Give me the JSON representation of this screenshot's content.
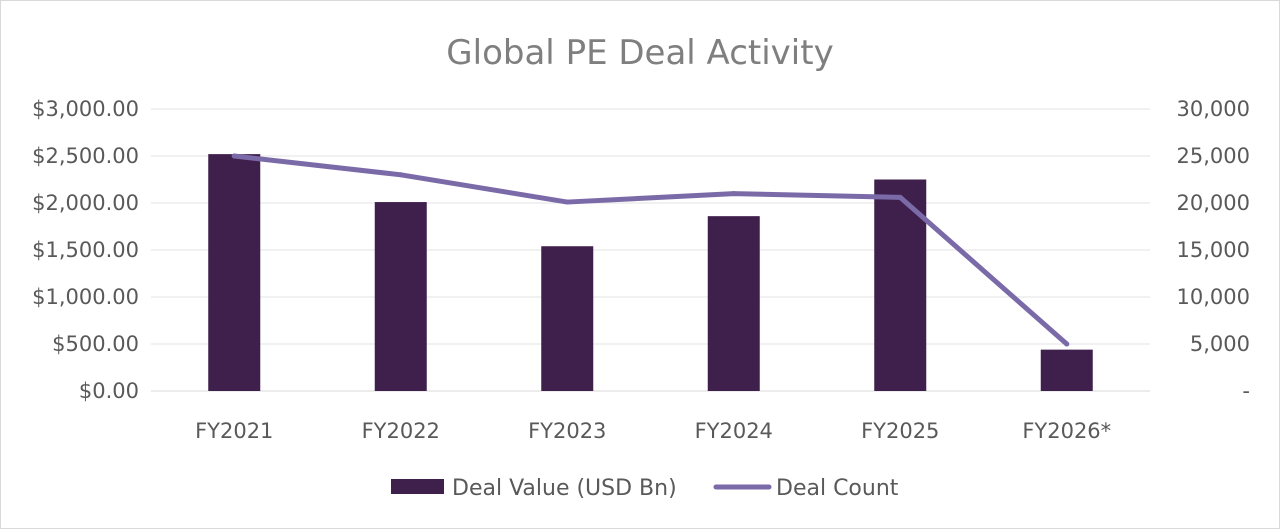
{
  "chart_data": {
    "type": "bar",
    "title": "Global PE Deal Activity",
    "categories": [
      "FY2021",
      "FY2022",
      "FY2023",
      "FY2024",
      "FY2025",
      "FY2026*"
    ],
    "series": [
      {
        "name": "Deal Value (USD Bn)",
        "type": "bar",
        "axis": "left",
        "color": "#3f1f4b",
        "values": [
          2520,
          2010,
          1540,
          1860,
          2250,
          440
        ]
      },
      {
        "name": "Deal Count",
        "type": "line",
        "axis": "right",
        "color": "#7b6aa8",
        "values": [
          25000,
          23000,
          20100,
          21000,
          20600,
          5000
        ]
      }
    ],
    "y_left": {
      "range": [
        0,
        3000
      ],
      "ticks": [
        0,
        500,
        1000,
        1500,
        2000,
        2500,
        3000
      ],
      "tick_labels": [
        "$0.00",
        "$500.00",
        "$1,000.00",
        "$1,500.00",
        "$2,000.00",
        "$2,500.00",
        "$3,000.00"
      ]
    },
    "y_right": {
      "range": [
        0,
        30000
      ],
      "ticks": [
        0,
        5000,
        10000,
        15000,
        20000,
        25000,
        30000
      ],
      "tick_labels": [
        "-",
        "5,000",
        "10,000",
        "15,000",
        "20,000",
        "25,000",
        "30,000"
      ]
    },
    "grid": true,
    "legend": "bottom"
  }
}
